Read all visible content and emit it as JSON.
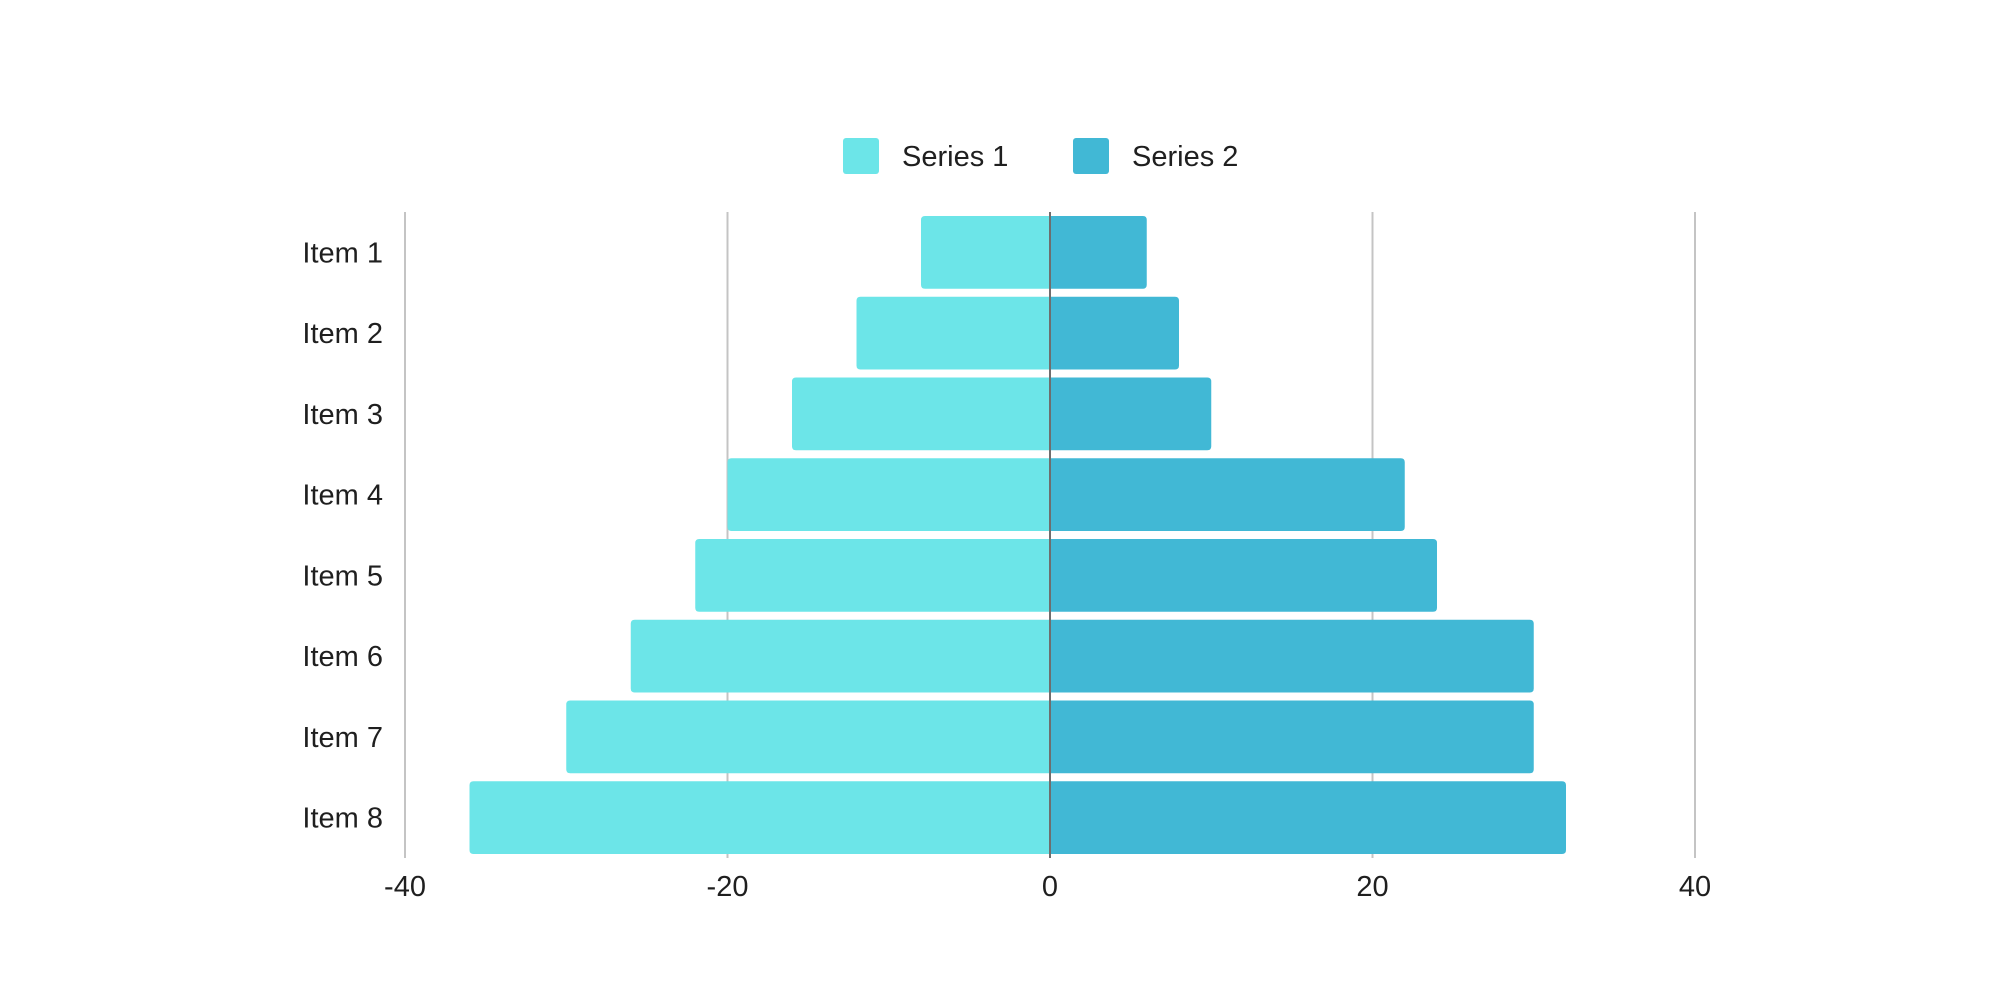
{
  "chart_data": {
    "type": "bar",
    "orientation": "horizontal",
    "layout": "diverging",
    "categories": [
      "Item 1",
      "Item 2",
      "Item 3",
      "Item 4",
      "Item 5",
      "Item 6",
      "Item 7",
      "Item 8"
    ],
    "series": [
      {
        "name": "Series 1",
        "values": [
          -8,
          -12,
          -16,
          -20,
          -22,
          -26,
          -30,
          -36
        ],
        "color": "#6ce5e8"
      },
      {
        "name": "Series 2",
        "values": [
          6,
          8,
          10,
          22,
          24,
          30,
          30,
          32
        ],
        "color": "#41b8d5"
      }
    ],
    "xlim": [
      -40,
      40
    ],
    "xticks": [
      -40,
      -20,
      0,
      20,
      40
    ],
    "xtick_labels": [
      "-40",
      "-20",
      "0",
      "20",
      "40"
    ],
    "grid": true,
    "legend": "top-center"
  }
}
